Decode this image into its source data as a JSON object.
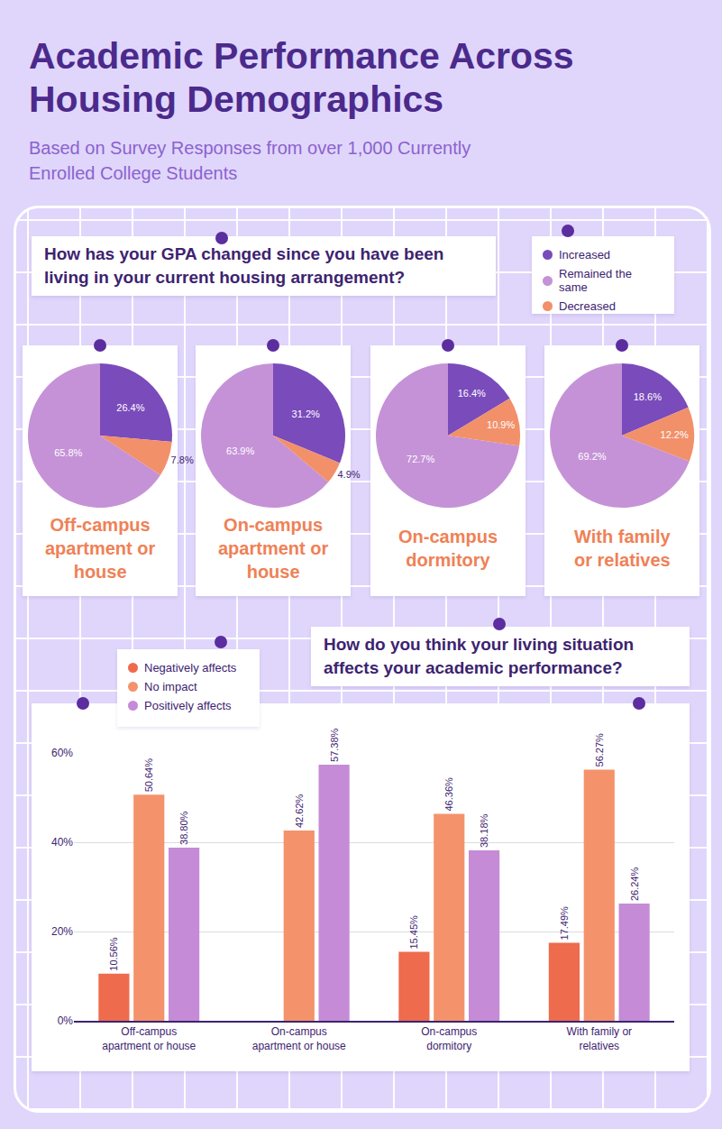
{
  "header": {
    "title": "Academic Performance Across Housing Demographics",
    "subtitle": "Based on Survey Responses from over 1,000 Currently Enrolled College Students"
  },
  "chart_data": [
    {
      "type": "pie",
      "title": "How has your GPA changed since you have been living in your current housing arrangement?",
      "categories": [
        "Increased",
        "Remained the same",
        "Decreased"
      ],
      "colors": [
        "#7a4bbb",
        "#c592d7",
        "#f2906a"
      ],
      "legend": "top right",
      "data_labels": true,
      "series": [
        {
          "name": "Off-campus apartment or house",
          "values": [
            26.4,
            65.8,
            7.8
          ],
          "value_labels": [
            "26.4%",
            "65.8%",
            "7.8%"
          ]
        },
        {
          "name": "On-campus apartment or house",
          "values": [
            31.2,
            63.9,
            4.9
          ],
          "value_labels": [
            "31.2%",
            "63.9%",
            "4.9%"
          ]
        },
        {
          "name": "On-campus dormitory",
          "values": [
            16.4,
            72.7,
            10.9
          ],
          "value_labels": [
            "16.4%",
            "72.7%",
            "10.9%"
          ]
        },
        {
          "name": "With family or relatives",
          "values": [
            18.6,
            69.2,
            12.2
          ],
          "value_labels": [
            "18.6%",
            "69.2%",
            "12.2%"
          ]
        }
      ]
    },
    {
      "type": "bar",
      "title": "How do you think your living situation affects your academic performance?",
      "categories": [
        "Off-campus apartment or house",
        "On-campus apartment or house",
        "On-campus dormitory",
        "With family or relatives"
      ],
      "series": [
        {
          "name": "Negatively affects",
          "color": "#ee6b4d",
          "values": [
            10.56,
            null,
            15.45,
            17.49
          ],
          "value_labels": [
            "10.56%",
            null,
            "15.45%",
            "17.49%"
          ]
        },
        {
          "name": "No impact",
          "color": "#f4936b",
          "values": [
            50.64,
            42.62,
            46.36,
            56.27
          ],
          "value_labels": [
            "50.64%",
            "42.62%",
            "46.36%",
            "56.27%"
          ]
        },
        {
          "name": "Positively affects",
          "color": "#c58bd6",
          "values": [
            38.8,
            57.38,
            38.18,
            26.24
          ],
          "value_labels": [
            "38.80%",
            "57.38%",
            "38.18%",
            "26.24%"
          ]
        }
      ],
      "ylim": [
        0,
        60
      ],
      "yticks": [
        {
          "value": 0,
          "label": "0%"
        },
        {
          "value": 20,
          "label": "20%"
        },
        {
          "value": 40,
          "label": "40%"
        },
        {
          "value": 60,
          "label": "60%"
        }
      ],
      "grid": true,
      "data_labels": true,
      "legend": "top left"
    }
  ]
}
